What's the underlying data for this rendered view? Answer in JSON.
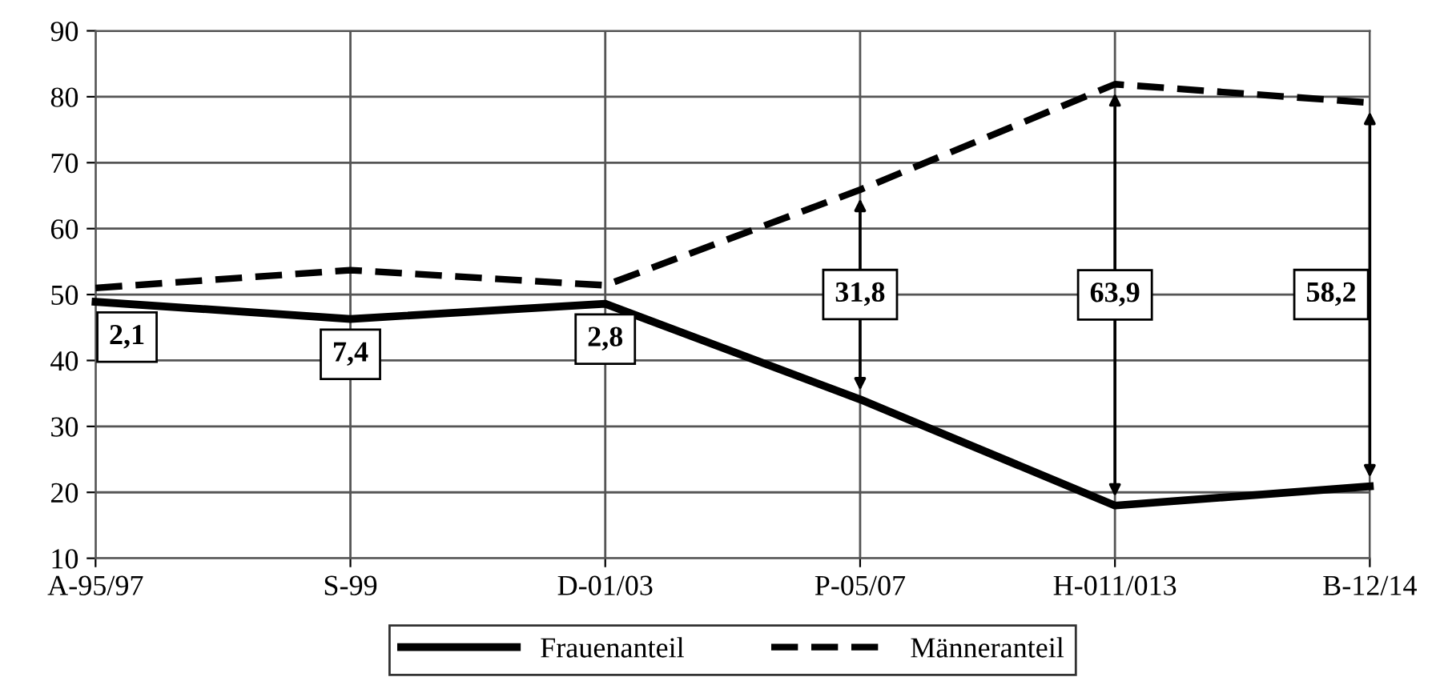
{
  "chart_data": {
    "type": "line",
    "categories": [
      "A-95/97",
      "S-99",
      "D-01/03",
      "P-05/07",
      "H-011/013",
      "B-12/14"
    ],
    "series": [
      {
        "name": "Frauenanteil",
        "color": "#000000",
        "line_style": "solid",
        "values": [
          48.9,
          46.3,
          48.6,
          34.1,
          18.0,
          20.9
        ]
      },
      {
        "name": "Männeranteil",
        "color": "#000000",
        "line_style": "dashed",
        "values": [
          51.0,
          53.7,
          51.4,
          65.9,
          81.9,
          79.1
        ]
      }
    ],
    "ylim": [
      10,
      90
    ],
    "yticks": [
      10,
      20,
      30,
      40,
      50,
      60,
      70,
      80,
      90
    ],
    "grid": true,
    "legend": "bottom",
    "marker": "none",
    "annotations": [
      "2,1",
      "7,4",
      "2,8",
      "31,8",
      "63,9",
      "58,2"
    ]
  }
}
